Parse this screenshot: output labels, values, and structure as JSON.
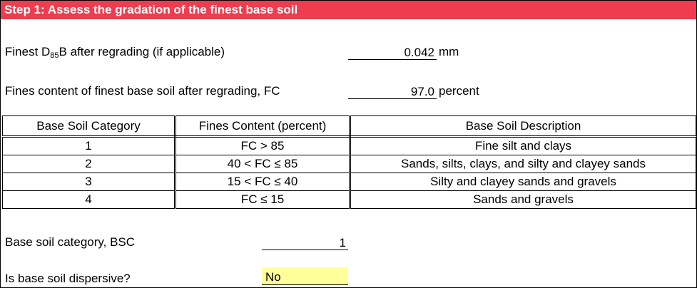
{
  "header": {
    "title": "Step 1: Assess the gradation of the finest base soil"
  },
  "d85": {
    "label_prefix": "Finest D",
    "label_sub": "85",
    "label_suffix": "B after regrading (if applicable)",
    "value": "0.042",
    "unit": "mm"
  },
  "fines": {
    "label": "Fines content of finest base soil after regrading, FC",
    "value": "97.0",
    "unit": "percent"
  },
  "table": {
    "headers": [
      "Base Soil Category",
      "Fines Content (percent)",
      "Base Soil Description"
    ],
    "rows": [
      [
        "1",
        "FC > 85",
        "Fine silt and clays"
      ],
      [
        "2",
        "40 < FC ≤ 85",
        "Sands, silts, clays, and silty and clayey sands"
      ],
      [
        "3",
        "15 < FC ≤ 40",
        "Silty and clayey sands and gravels"
      ],
      [
        "4",
        "FC ≤ 15",
        "Sands and gravels"
      ]
    ]
  },
  "bsc": {
    "label": "Base soil category, BSC",
    "value": "1"
  },
  "dispersive": {
    "label": "Is base soil dispersive?",
    "value": "No"
  }
}
